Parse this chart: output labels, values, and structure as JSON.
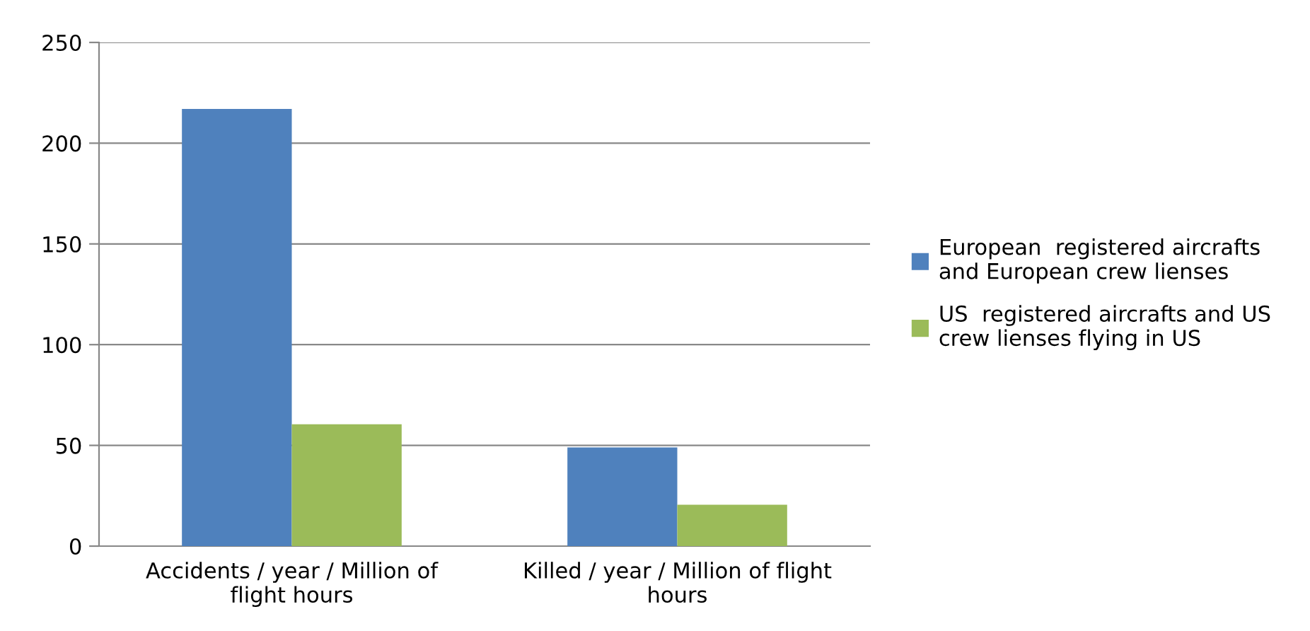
{
  "chart_data": {
    "type": "bar",
    "categories": [
      "Accidents / year / Million of\nflight hours",
      "Killed / year / Million of flight\nhours"
    ],
    "series": [
      {
        "name": "European  registered aircrafts\nand European crew lienses",
        "color": "#4f81bd",
        "values": [
          217,
          49
        ]
      },
      {
        "name": "US  registered aircrafts and US\ncrew lienses flying in US",
        "color": "#9bbb59",
        "values": [
          60.5,
          20.5
        ]
      }
    ],
    "ylim": [
      0,
      250
    ],
    "yticks": [
      0,
      50,
      100,
      150,
      200,
      250
    ],
    "grid": "y",
    "legend": "right"
  }
}
